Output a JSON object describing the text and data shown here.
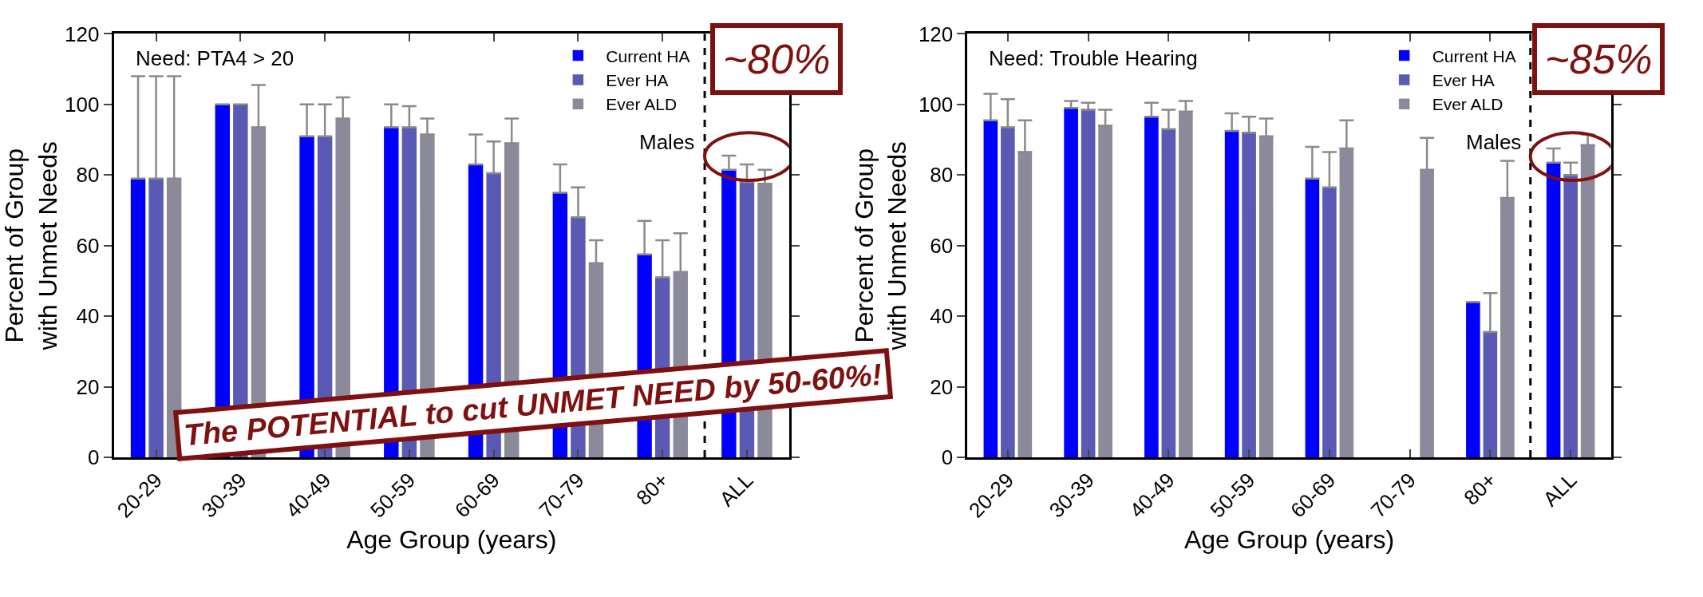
{
  "chart_data": [
    {
      "type": "bar",
      "xlabel": "Age Group (years)",
      "ylabel": "Percent of Group\nwith Unmet Needs",
      "categories": [
        "20-29",
        "30-39",
        "40-49",
        "50-59",
        "60-69",
        "70-79",
        "80+",
        "ALL"
      ],
      "ylim": [
        0,
        120
      ],
      "yticks": [
        0,
        20,
        40,
        60,
        80,
        100,
        120
      ],
      "legend": "top right",
      "series": [
        {
          "name": "Current HA",
          "color": "#0000ff",
          "values": [
            79,
            100,
            91,
            93.5,
            83,
            75,
            57.5,
            81.5
          ],
          "errors": [
            [
              79,
              108
            ],
            null,
            [
              91,
              100
            ],
            [
              93.5,
              100
            ],
            [
              83,
              91.5
            ],
            [
              75,
              83
            ],
            [
              57.5,
              67
            ],
            [
              81.5,
              85.5
            ]
          ]
        },
        {
          "name": "Ever HA",
          "color": "#5a5ab4",
          "values": [
            79,
            100,
            91,
            93.5,
            80.5,
            68,
            51,
            78
          ],
          "errors": [
            [
              79,
              108
            ],
            null,
            [
              91,
              100
            ],
            [
              93.5,
              99.5
            ],
            [
              80.5,
              89.5
            ],
            [
              68,
              76.5
            ],
            [
              51,
              61.5
            ],
            [
              78,
              83
            ]
          ]
        },
        {
          "name": "Ever ALD",
          "color": "#8a8a9a",
          "values": [
            79,
            93.5,
            96,
            91.5,
            89,
            55,
            52.5,
            77.5
          ],
          "errors": [
            [
              79,
              108
            ],
            [
              93.5,
              105.5
            ],
            [
              96,
              102
            ],
            [
              91.5,
              96
            ],
            [
              89,
              96
            ],
            [
              55,
              61.5
            ],
            [
              52.5,
              63.5
            ],
            [
              77.5,
              81.5
            ]
          ]
        }
      ],
      "annotations": [
        "Need: PTA4 > 20",
        "Males",
        "~80%",
        "The POTENTIAL to cut UNMET NEED by 50-60%!"
      ]
    },
    {
      "type": "bar",
      "xlabel": "Age Group (years)",
      "ylabel": "Percent of Group\nwith Unmet Needs",
      "categories": [
        "20-29",
        "30-39",
        "40-49",
        "50-59",
        "60-69",
        "70-79",
        "80+",
        "ALL"
      ],
      "ylim": [
        0,
        120
      ],
      "yticks": [
        0,
        20,
        40,
        60,
        80,
        100,
        120
      ],
      "legend": "top right",
      "series": [
        {
          "name": "Current HA",
          "color": "#0000ff",
          "values": [
            95.5,
            99,
            96.5,
            92.5,
            79,
            null,
            44,
            83.5
          ],
          "errors": [
            [
              95.5,
              103
            ],
            [
              99,
              101
            ],
            [
              96.5,
              100.5
            ],
            [
              92.5,
              97.5
            ],
            [
              79,
              88
            ],
            null,
            null,
            [
              83.5,
              87.5
            ]
          ]
        },
        {
          "name": "Ever HA",
          "color": "#5a5ab4",
          "values": [
            93.5,
            98.5,
            93,
            92,
            76.5,
            null,
            35.5,
            80
          ],
          "errors": [
            [
              93.5,
              101.5
            ],
            [
              98.5,
              100.5
            ],
            [
              93,
              98.5
            ],
            [
              92,
              96.5
            ],
            [
              76.5,
              86.5
            ],
            null,
            [
              35.5,
              46.5
            ],
            [
              80,
              83.5
            ]
          ]
        },
        {
          "name": "Ever ALD",
          "color": "#8a8a9a",
          "values": [
            86.5,
            94,
            98,
            91,
            87.5,
            81.5,
            73.5,
            88.5
          ],
          "errors": [
            [
              86.5,
              95.5
            ],
            [
              94,
              98.5
            ],
            [
              98,
              101
            ],
            [
              91,
              96
            ],
            [
              87.5,
              95.5
            ],
            [
              81.5,
              90.5
            ],
            [
              73.5,
              84
            ],
            [
              88.5,
              91.5
            ]
          ]
        }
      ],
      "annotations": [
        "Need: Trouble Hearing",
        "Males",
        "~85%"
      ]
    }
  ]
}
